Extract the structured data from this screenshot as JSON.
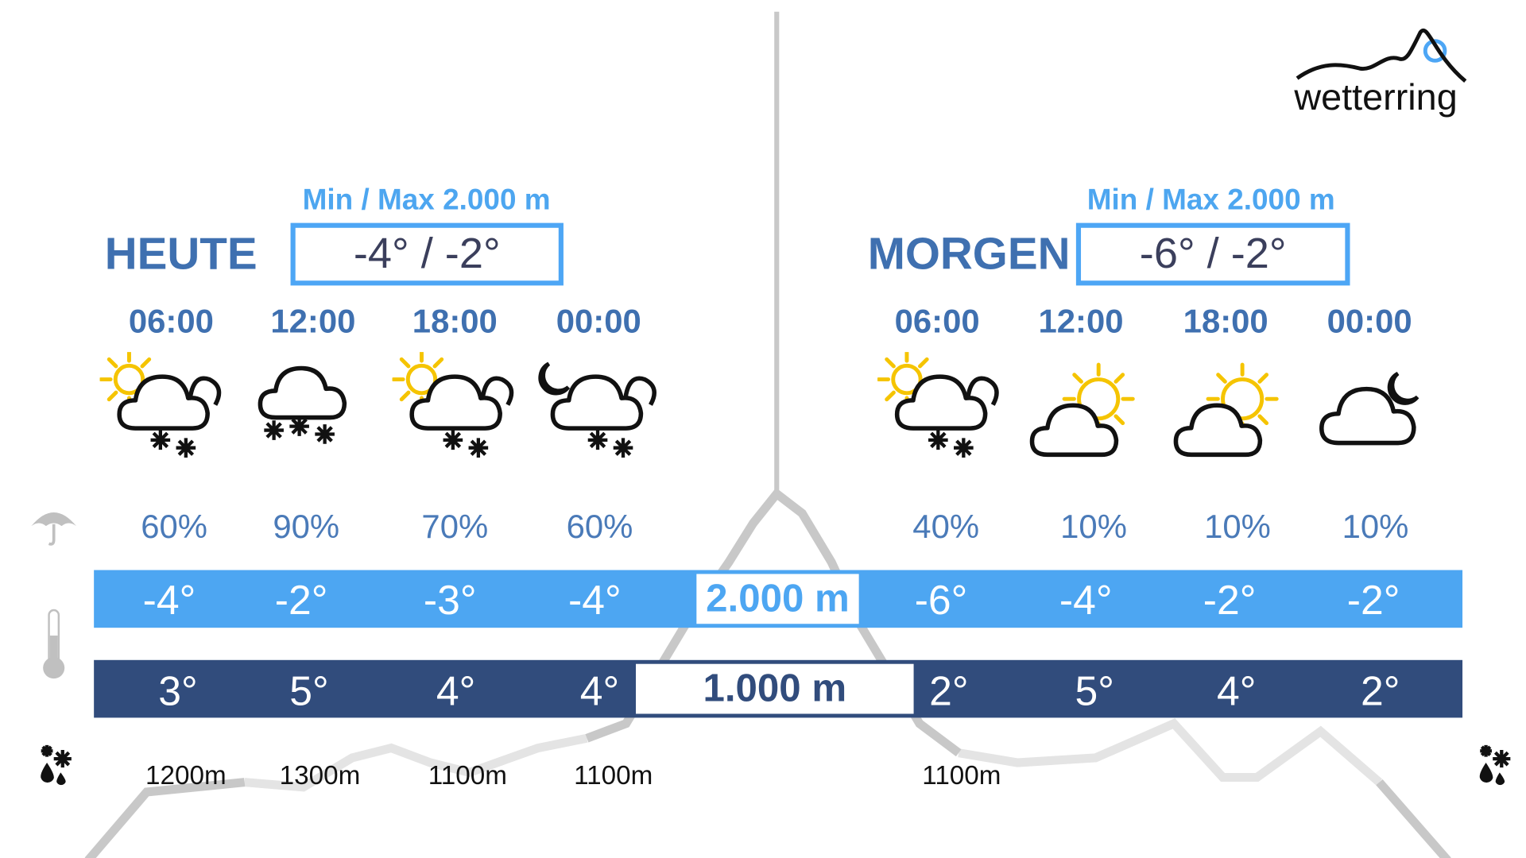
{
  "brand": {
    "name": "wetterring",
    "accent": "#4da6f5",
    "dark": "#314c7c"
  },
  "heute": {
    "label": "HEUTE",
    "minmax_label": "Min / Max 2.000 m",
    "minmax": "-4° / -2°",
    "slots": [
      {
        "time": "06:00",
        "icon": "sun-cloud-snow",
        "precip": "60%",
        "t2000": "-4°",
        "t1000": "3°",
        "snowline": "1200m"
      },
      {
        "time": "12:00",
        "icon": "cloud-snow",
        "precip": "90%",
        "t2000": "-2°",
        "t1000": "5°",
        "snowline": "1300m"
      },
      {
        "time": "18:00",
        "icon": "sun-cloud-snow",
        "precip": "70%",
        "t2000": "-3°",
        "t1000": "4°",
        "snowline": "1100m"
      },
      {
        "time": "00:00",
        "icon": "moon-cloud-snow",
        "precip": "60%",
        "t2000": "-4°",
        "t1000": "4°",
        "snowline": "1100m"
      }
    ]
  },
  "morgen": {
    "label": "MORGEN",
    "minmax_label": "Min / Max 2.000 m",
    "minmax": "-6° / -2°",
    "slots": [
      {
        "time": "06:00",
        "icon": "sun-cloud-snow",
        "precip": "40%",
        "t2000": "-6°",
        "t1000": "2°",
        "snowline": "1100m"
      },
      {
        "time": "12:00",
        "icon": "sun-cloud",
        "precip": "10%",
        "t2000": "-4°",
        "t1000": "5°",
        "snowline": ""
      },
      {
        "time": "18:00",
        "icon": "sun-cloud",
        "precip": "10%",
        "t2000": "-2°",
        "t1000": "4°",
        "snowline": ""
      },
      {
        "time": "00:00",
        "icon": "cloud-moon",
        "precip": "10%",
        "t2000": "-2°",
        "t1000": "2°",
        "snowline": ""
      }
    ]
  },
  "levels": {
    "high": "2.000 m",
    "low": "1.000 m"
  },
  "row_icons": {
    "precip": "umbrella-icon",
    "temp": "thermometer-icon",
    "snowline": "snow-rain-icon"
  }
}
